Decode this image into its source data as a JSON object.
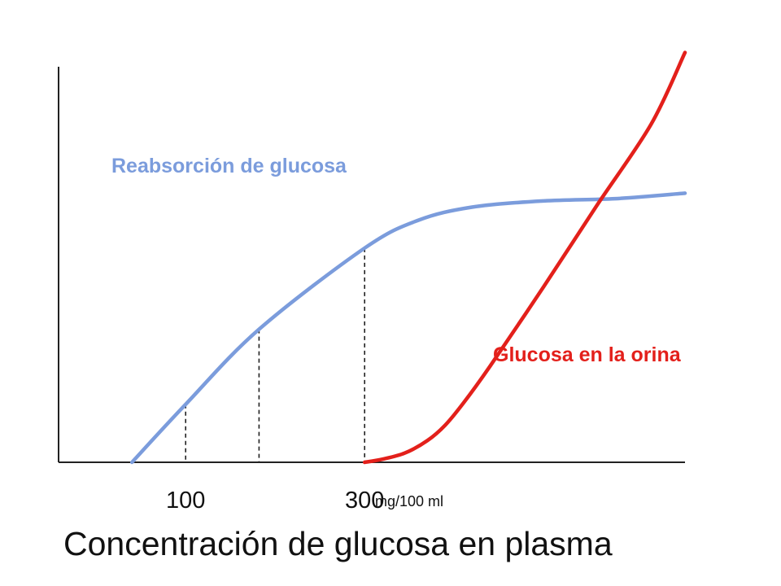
{
  "chart_data": {
    "type": "line",
    "title": "",
    "xlabel": "Concentración de glucosa en plasma",
    "x_unit": "mg/100 ml",
    "ylabel": "",
    "x_ticks": [
      {
        "value": 100,
        "label": "100"
      },
      {
        "value": 300,
        "label": "300"
      }
    ],
    "xlim": [
      -42,
      658
    ],
    "ylim": [
      0,
      560
    ],
    "grid": false,
    "legend": "none",
    "reference_lines": [
      {
        "x": 100,
        "y": 75,
        "style": "dashed"
      },
      {
        "x": 182,
        "y": 172,
        "style": "dashed"
      },
      {
        "x": 300,
        "y": 277,
        "style": "dashed"
      }
    ],
    "series": [
      {
        "name": "Reabsorción de glucosa",
        "color": "#7b9cdc",
        "points": [
          [
            40,
            0
          ],
          [
            100,
            75
          ],
          [
            182,
            172
          ],
          [
            300,
            277
          ],
          [
            360,
            313
          ],
          [
            420,
            330
          ],
          [
            500,
            338
          ],
          [
            580,
            341
          ],
          [
            658,
            348
          ]
        ]
      },
      {
        "name": "Glucosa en la orina",
        "color": "#e3201b",
        "points": [
          [
            300,
            0
          ],
          [
            320,
            4
          ],
          [
            345,
            12
          ],
          [
            370,
            28
          ],
          [
            390,
            48
          ],
          [
            410,
            76
          ],
          [
            440,
            124
          ],
          [
            500,
            227
          ],
          [
            560,
            333
          ],
          [
            620,
            437
          ],
          [
            658,
            530
          ]
        ]
      }
    ]
  }
}
